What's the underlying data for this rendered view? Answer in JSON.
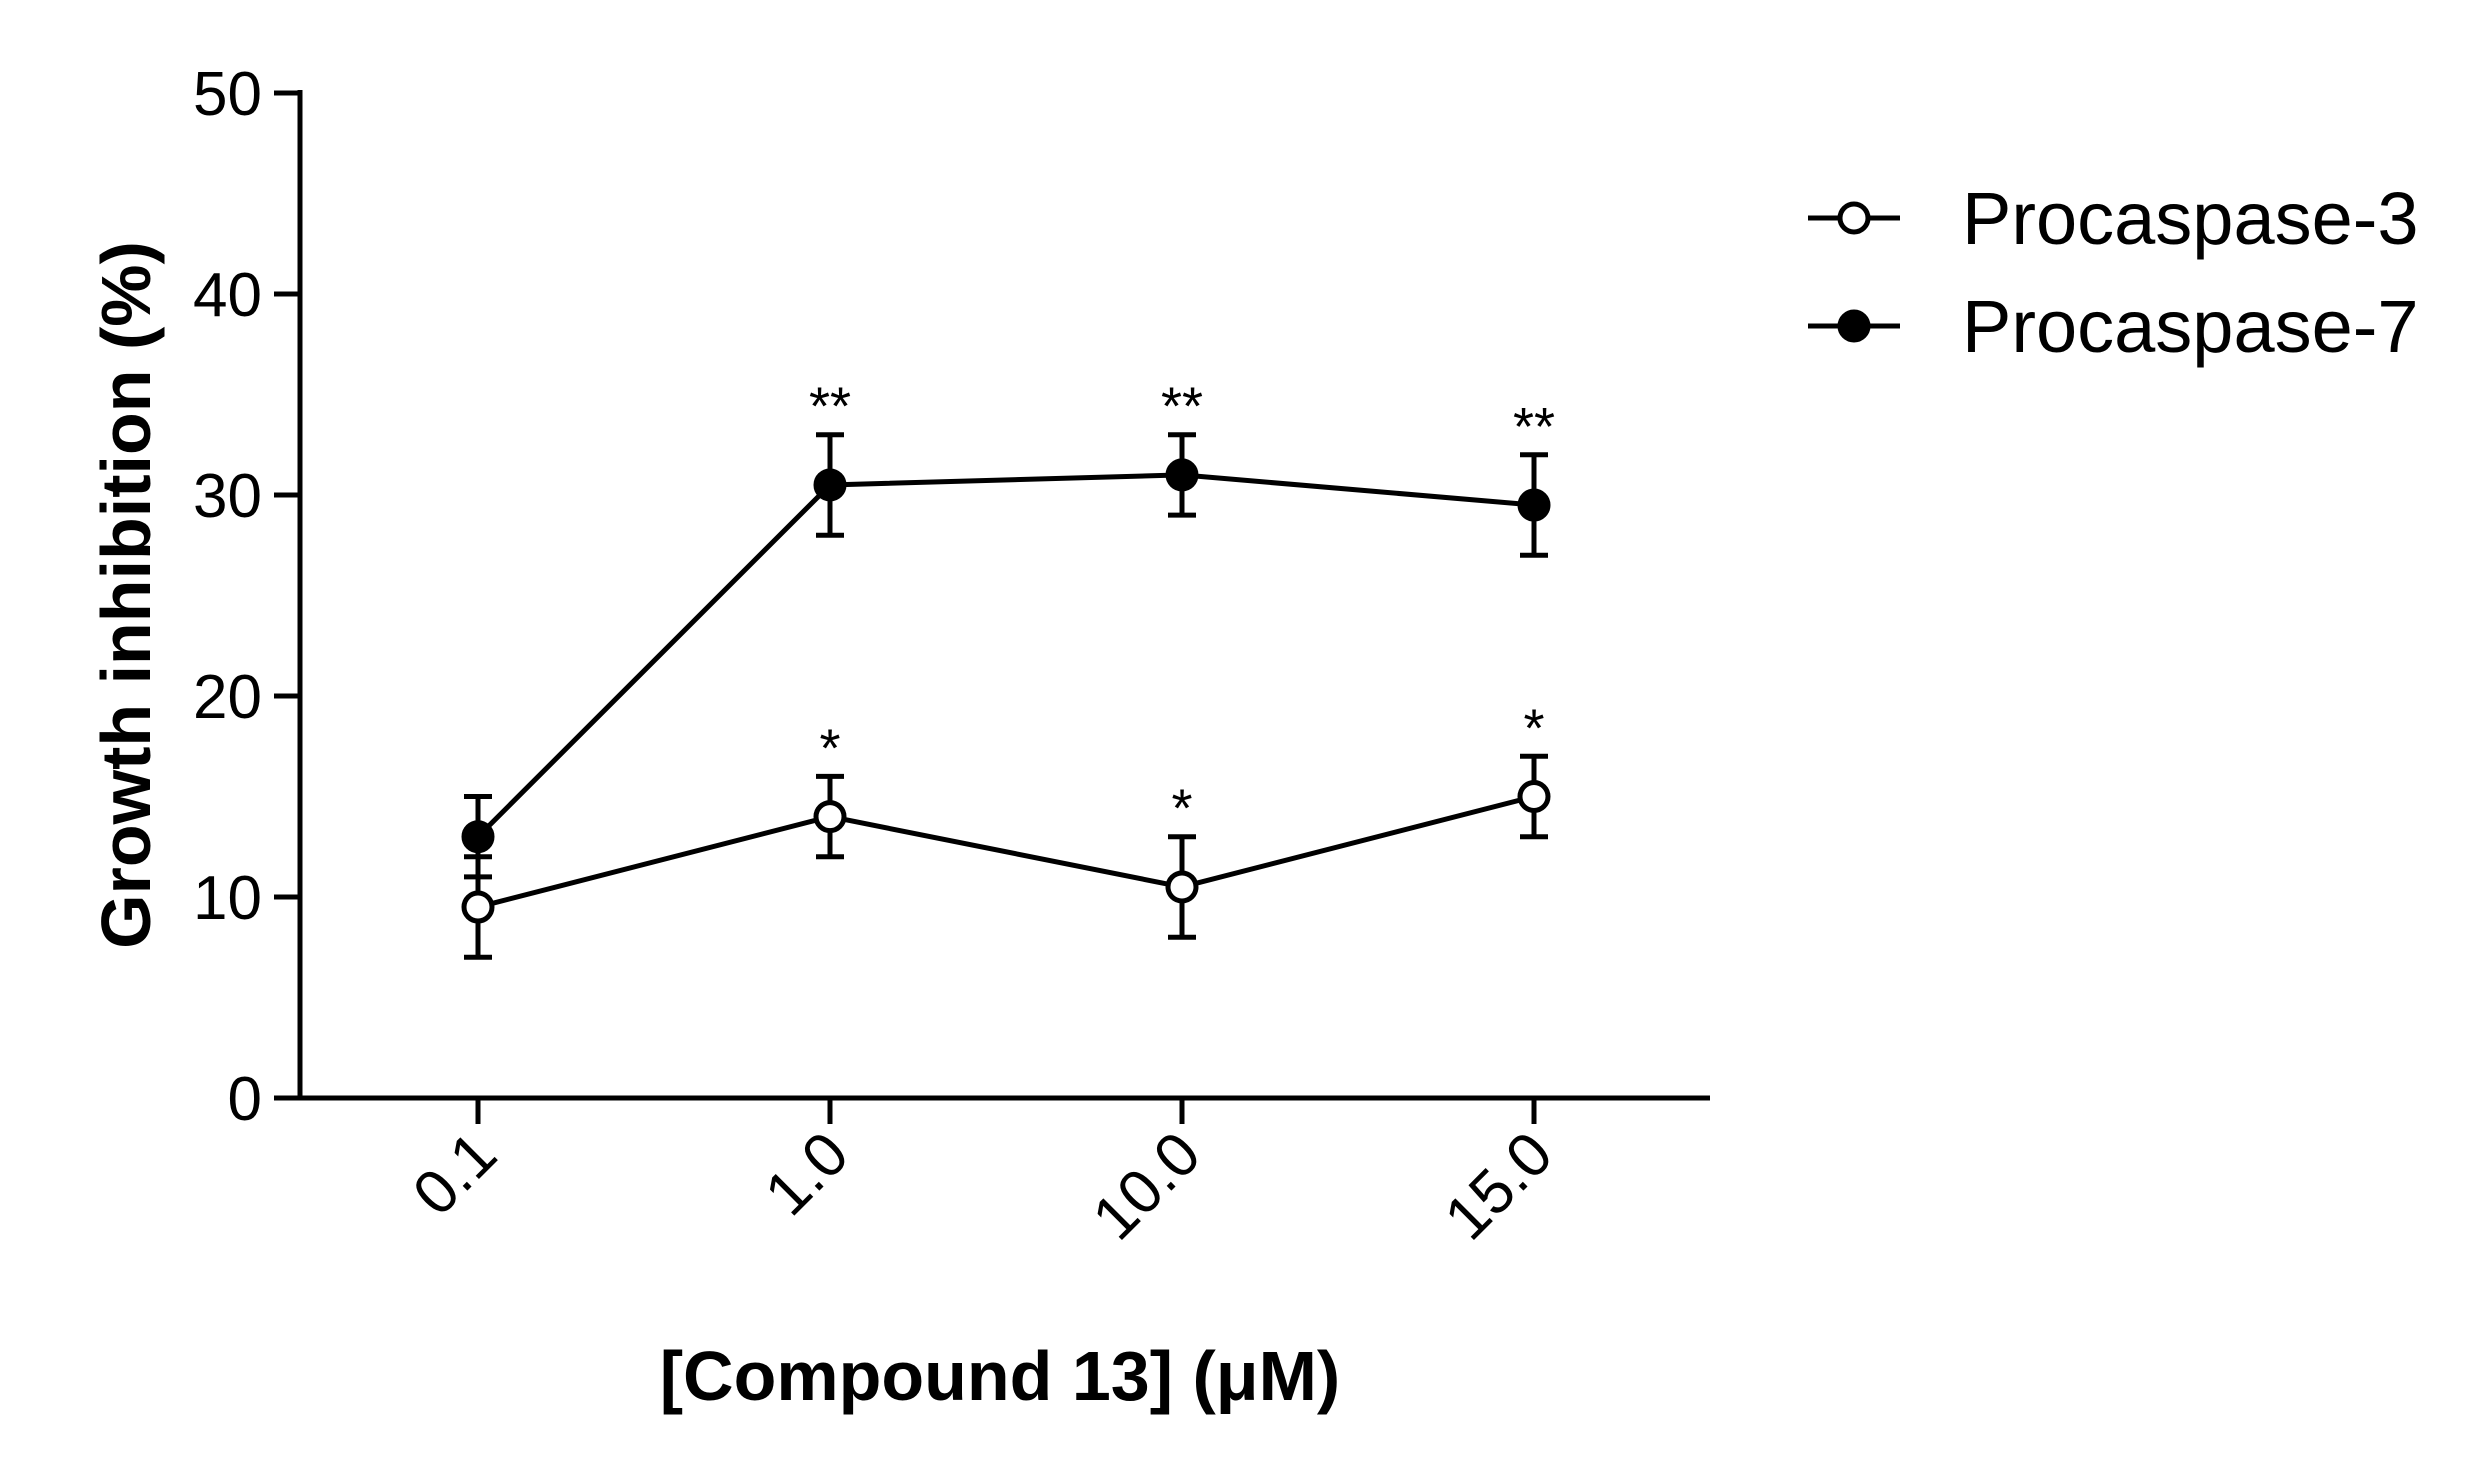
{
  "chart_data": {
    "type": "line",
    "title": "",
    "xlabel": "[Compound 13] (μM)",
    "ylabel": "Growth inhibition (%)",
    "categories": [
      "0.1",
      "1.0",
      "10.0",
      "15.0"
    ],
    "ylim": [
      0,
      50
    ],
    "yticks": [
      "0",
      "10",
      "20",
      "30",
      "40",
      "50"
    ],
    "grid": false,
    "legend_position": "top-right",
    "series": [
      {
        "name": "Procaspase-3",
        "marker": "open-circle",
        "color": "#000000",
        "values": [
          9.5,
          14.0,
          10.5,
          15.0
        ],
        "errors": [
          2.5,
          2.0,
          2.5,
          2.0
        ],
        "significance": [
          "",
          "*",
          "*",
          "*"
        ]
      },
      {
        "name": "Procaspase-7",
        "marker": "filled-circle",
        "color": "#000000",
        "values": [
          13.0,
          30.5,
          31.0,
          29.5
        ],
        "errors": [
          2.0,
          2.5,
          2.0,
          2.5
        ],
        "significance": [
          "",
          "**",
          "**",
          "**"
        ]
      }
    ]
  }
}
